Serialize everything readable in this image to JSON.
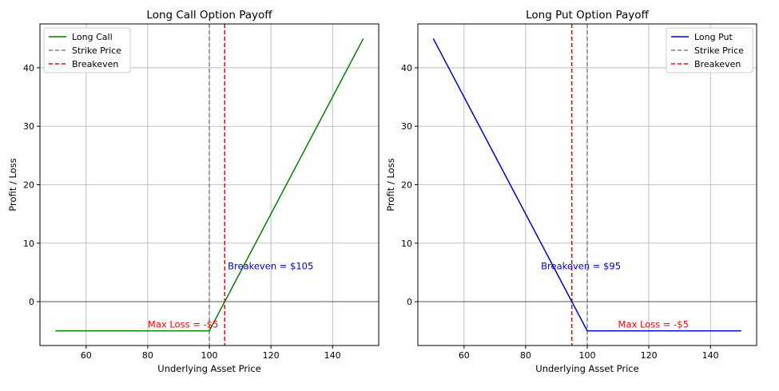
{
  "chart_data": [
    {
      "type": "line",
      "title": "Long Call Option Payoff",
      "xlabel": "Underlying Asset Price",
      "ylabel": "Profit / Loss",
      "xlim": [
        45,
        155
      ],
      "ylim": [
        -7.5,
        47.5
      ],
      "xticks": [
        60,
        80,
        100,
        120,
        140
      ],
      "yticks": [
        0,
        10,
        20,
        30,
        40
      ],
      "grid": true,
      "legend_position": "top-left",
      "series": [
        {
          "name": "Long Call",
          "color": "#008000",
          "style": "solid",
          "x": [
            50,
            100,
            150
          ],
          "y": [
            -5,
            -5,
            45
          ]
        }
      ],
      "vlines": [
        {
          "name": "Strike Price",
          "x": 100,
          "color": "#808080",
          "style": "dashed"
        },
        {
          "name": "Breakeven",
          "x": 105,
          "color": "#ff0000",
          "style": "dashed"
        }
      ],
      "hline": {
        "y": 0,
        "color": "#555555"
      },
      "annotations": [
        {
          "text": "Breakeven = $105",
          "x": 106,
          "y": 5,
          "color": "#0000cc"
        },
        {
          "text": "Max Loss = -$5",
          "x": 80,
          "y": -5,
          "color": "#ff0000"
        }
      ]
    },
    {
      "type": "line",
      "title": "Long Put Option Payoff",
      "xlabel": "Underlying Asset Price",
      "ylabel": "Profit / Loss",
      "xlim": [
        45,
        155
      ],
      "ylim": [
        -7.5,
        47.5
      ],
      "xticks": [
        60,
        80,
        100,
        120,
        140
      ],
      "yticks": [
        0,
        10,
        20,
        30,
        40
      ],
      "grid": true,
      "legend_position": "top-right",
      "series": [
        {
          "name": "Long Put",
          "color": "#0000cc",
          "style": "solid",
          "x": [
            50,
            100,
            150
          ],
          "y": [
            45,
            -5,
            -5
          ]
        }
      ],
      "vlines": [
        {
          "name": "Strike Price",
          "x": 100,
          "color": "#808080",
          "style": "dashed"
        },
        {
          "name": "Breakeven",
          "x": 95,
          "color": "#ff0000",
          "style": "dashed"
        }
      ],
      "hline": {
        "y": 0,
        "color": "#555555"
      },
      "annotations": [
        {
          "text": "Breakeven = $95",
          "x": 85,
          "y": 5,
          "color": "#0000cc"
        },
        {
          "text": "Max Loss = -$5",
          "x": 110,
          "y": -5,
          "color": "#ff0000"
        }
      ]
    }
  ]
}
